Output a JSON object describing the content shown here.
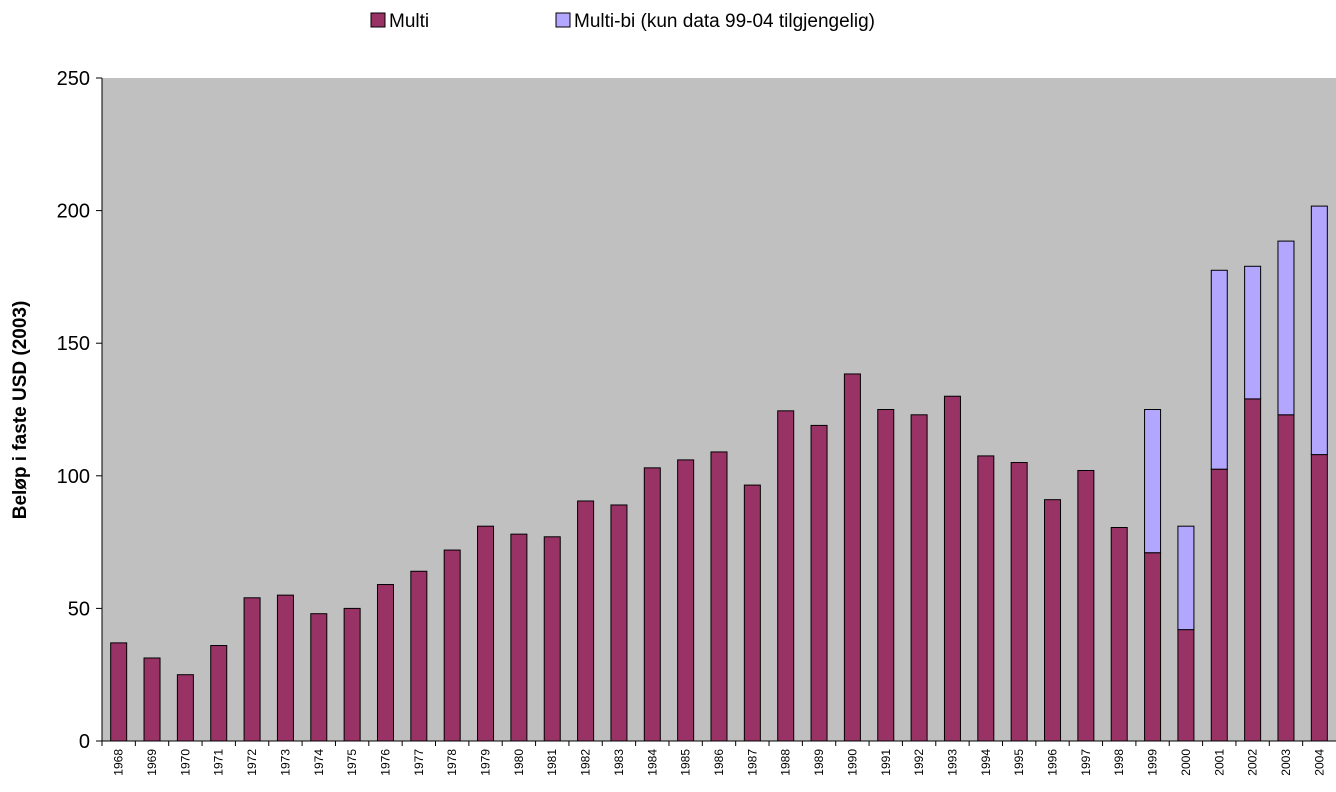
{
  "chart_data": {
    "type": "stacked_bar",
    "ylabel": "Beløp i faste USD (2003)",
    "categories": [
      "1968",
      "1969",
      "1970",
      "1971",
      "1972",
      "1973",
      "1974",
      "1975",
      "1976",
      "1977",
      "1978",
      "1979",
      "1980",
      "1981",
      "1982",
      "1983",
      "1984",
      "1985",
      "1986",
      "1987",
      "1988",
      "1989",
      "1990",
      "1991",
      "1992",
      "1993",
      "1994",
      "1995",
      "1996",
      "1997",
      "1998",
      "1999",
      "2000",
      "2001",
      "2002",
      "2003",
      "2004"
    ],
    "series": [
      {
        "name": "Multi",
        "color": "#993366",
        "values": [
          37,
          31.3,
          25,
          36,
          54,
          55,
          48,
          50,
          59,
          64,
          72,
          81,
          78,
          77,
          90.5,
          89,
          103,
          106,
          109,
          96.5,
          124.5,
          119,
          138.4,
          125,
          123,
          130,
          107.5,
          105,
          91,
          102,
          80.5,
          71,
          42,
          102.5,
          129,
          123,
          108
        ]
      },
      {
        "name": "Multi-bi (kun data 99-04 tilgjengelig)",
        "color": "#b3a6ff",
        "values": [
          null,
          null,
          null,
          null,
          null,
          null,
          null,
          null,
          null,
          null,
          null,
          null,
          null,
          null,
          null,
          null,
          null,
          null,
          null,
          null,
          null,
          null,
          null,
          null,
          null,
          null,
          null,
          null,
          null,
          null,
          null,
          54,
          39,
          75,
          50,
          65.5,
          93.7
        ]
      }
    ],
    "ylim": [
      0,
      250
    ],
    "yticks": [
      0,
      50,
      100,
      150,
      200,
      250
    ],
    "grid": false,
    "legend": "top"
  }
}
